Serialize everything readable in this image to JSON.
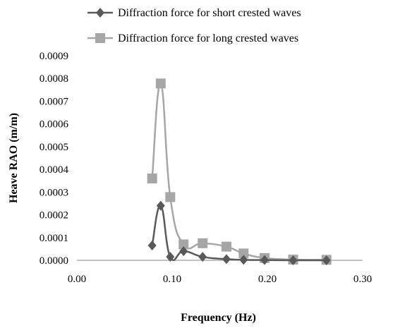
{
  "chart_data": {
    "type": "line",
    "title": "",
    "xlabel": "Frequency (Hz)",
    "ylabel": "Heave RAO (m/m)",
    "xlim": [
      0.0,
      0.3
    ],
    "ylim": [
      0.0,
      0.0009
    ],
    "xticks": [
      0.0,
      0.1,
      0.2,
      0.3
    ],
    "yticks": [
      0.0,
      0.0001,
      0.0002,
      0.0003,
      0.0004,
      0.0005,
      0.0006,
      0.0007,
      0.0008,
      0.0009
    ],
    "x_tick_labels": [
      "0.00",
      "0.10",
      "0.20",
      "0.30"
    ],
    "y_tick_labels": [
      "0.0000",
      "0.0001",
      "0.0002",
      "0.0003",
      "0.0004",
      "0.0005",
      "0.0006",
      "0.0007",
      "0.0008",
      "0.0009"
    ],
    "grid": false,
    "smooth": true,
    "legend_position": "top",
    "series": [
      {
        "name": "Diffraction force for short crested waves",
        "marker": "diamond",
        "color": "#595959",
        "x": [
          0.079,
          0.088,
          0.098,
          0.112,
          0.132,
          0.157,
          0.175,
          0.197,
          0.227,
          0.262
        ],
        "y": [
          6.5e-05,
          0.00024,
          1.5e-05,
          4e-05,
          1.5e-05,
          5e-06,
          2e-06,
          1e-06,
          0.0,
          0.0
        ]
      },
      {
        "name": "Diffraction force for long crested waves",
        "marker": "square",
        "color": "#a6a6a6",
        "x": [
          0.079,
          0.088,
          0.098,
          0.112,
          0.132,
          0.157,
          0.175,
          0.197,
          0.227,
          0.262
        ],
        "y": [
          0.00036,
          0.000778,
          0.000278,
          7e-05,
          7.5e-05,
          6e-05,
          3e-05,
          1e-05,
          3e-06,
          2e-06
        ]
      }
    ]
  }
}
